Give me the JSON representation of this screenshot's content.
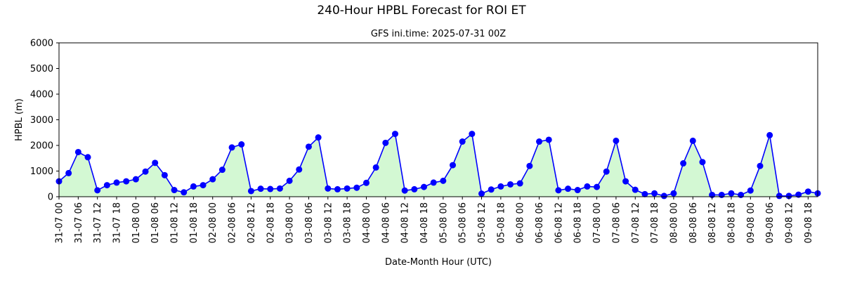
{
  "suptitle": "240-Hour HPBL Forecast for ROI ET",
  "chart_data": {
    "type": "line",
    "title": "GFS ini.time: 2025-07-31 00Z",
    "xlabel": "Date-Month Hour (UTC)",
    "ylabel": "HPBL (m)",
    "ylim": [
      0,
      6000
    ],
    "yticks": [
      0,
      1000,
      2000,
      3000,
      4000,
      5000,
      6000
    ],
    "grid": false,
    "x_step_hours": 3,
    "x_tick_labels": [
      "31-07 00",
      "31-07 06",
      "31-07 12",
      "31-07 18",
      "01-08 00",
      "01-08 06",
      "01-08 12",
      "01-08 18",
      "02-08 00",
      "02-08 06",
      "02-08 12",
      "02-08 18",
      "03-08 00",
      "03-08 06",
      "03-08 12",
      "03-08 18",
      "04-08 00",
      "04-08 06",
      "04-08 12",
      "04-08 18",
      "05-08 00",
      "05-08 06",
      "05-08 12",
      "05-08 18",
      "06-08 00",
      "06-08 06",
      "06-08 12",
      "06-08 18",
      "07-08 00",
      "07-08 06",
      "07-08 12",
      "07-08 18",
      "08-08 00",
      "08-08 06",
      "08-08 12",
      "08-08 18",
      "09-08 00",
      "09-08 06",
      "09-08 12",
      "09-08 18"
    ],
    "series": [
      {
        "values": [
          600,
          920,
          1740,
          1540,
          250,
          450,
          550,
          600,
          680,
          980,
          1320,
          840,
          260,
          170,
          400,
          450,
          680,
          1050,
          1920,
          2040,
          220,
          310,
          300,
          320,
          620,
          1060,
          1950,
          2310,
          320,
          290,
          320,
          350,
          540,
          1140,
          2100,
          2450,
          240,
          290,
          380,
          550,
          620,
          1230,
          2150,
          2450,
          120,
          280,
          400,
          480,
          520,
          1200,
          2150,
          2220,
          250,
          310,
          260,
          400,
          380,
          980,
          2180,
          600,
          270,
          100,
          130,
          30,
          130,
          1300,
          2180,
          1350,
          70,
          70,
          130,
          70,
          240,
          1200,
          2400,
          30,
          30,
          80,
          200,
          130
        ],
        "color": "#0000ff",
        "fill": "#d3f8d3"
      }
    ]
  }
}
